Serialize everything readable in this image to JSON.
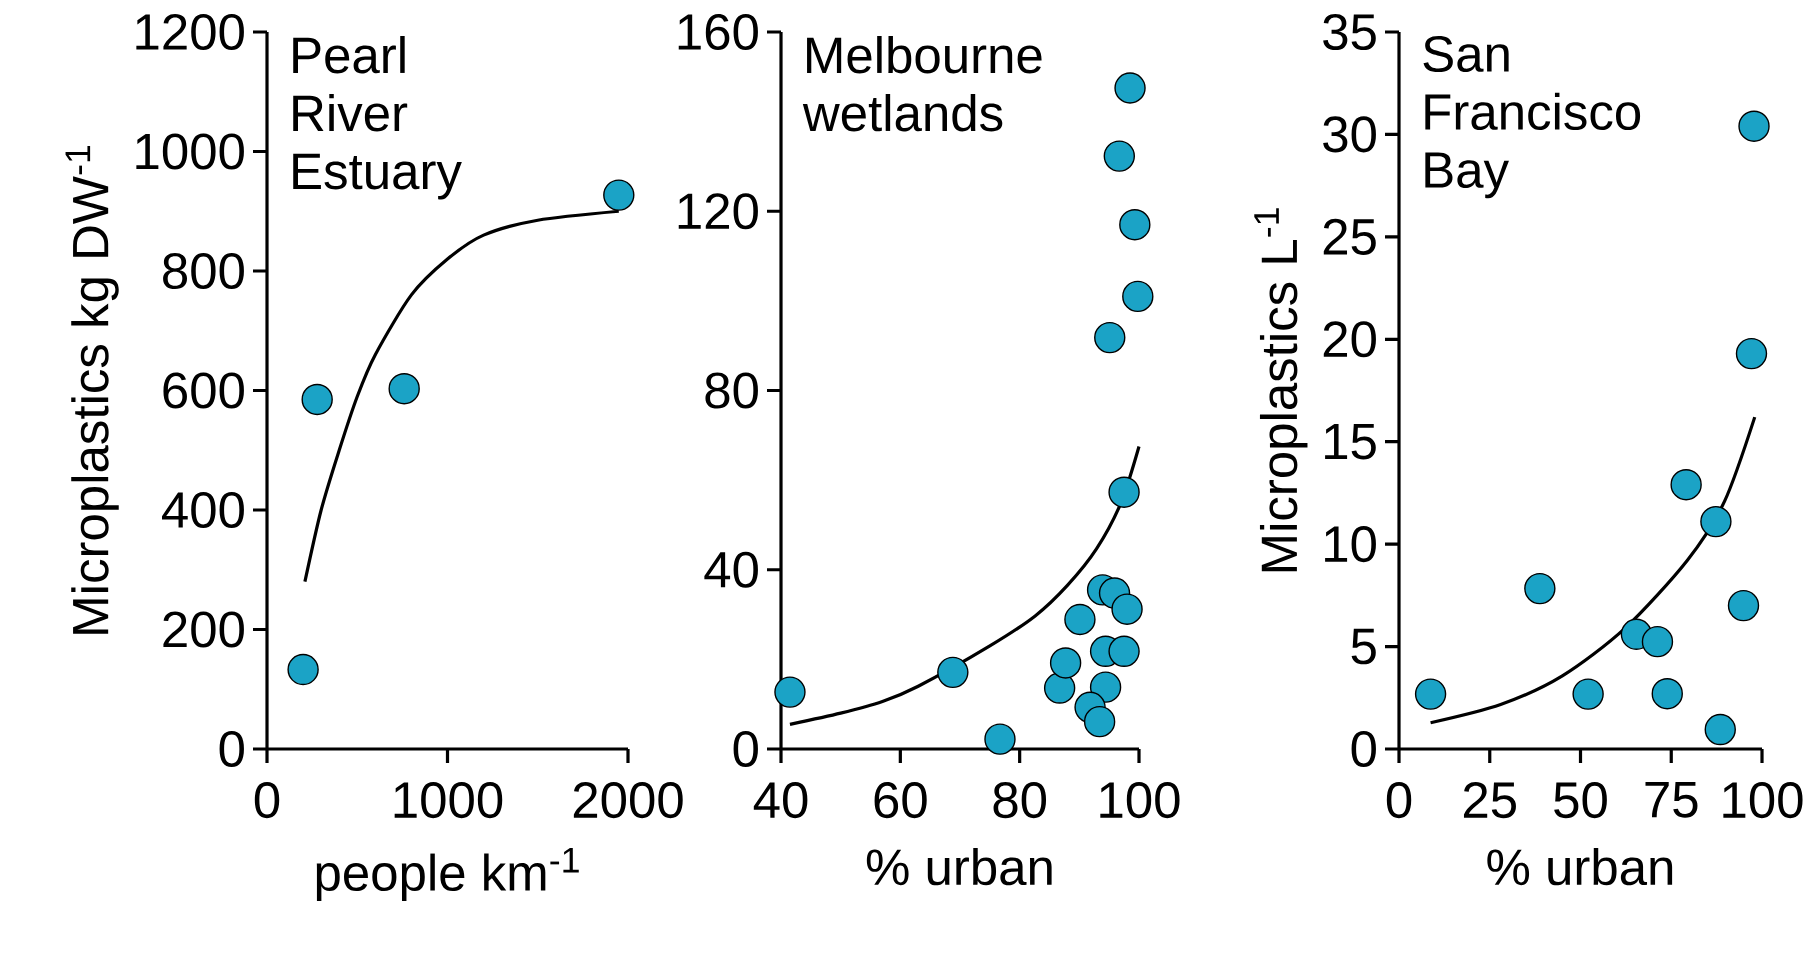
{
  "chart_data": [
    {
      "type": "scatter",
      "title": "Pearl River Estuary",
      "xlabel": "people km$^{-1}$",
      "ylabel": "Microplastics kg DW$^{-1}$",
      "xlim": [
        0,
        2000
      ],
      "ylim": [
        0,
        1200
      ],
      "xticks": [
        0,
        1000,
        2000
      ],
      "yticks": [
        0,
        200,
        400,
        600,
        800,
        1000,
        1200
      ],
      "series": [
        {
          "type": "line",
          "color": "#000000",
          "x": [
            210,
            300,
            400,
            500,
            600,
            800,
            1000,
            1200,
            1500,
            1949
          ],
          "values": [
            280,
            400,
            500,
            590,
            660,
            760,
            820,
            860,
            885,
            900
          ]
        },
        {
          "color": "#1ba3c6",
          "marker": "circle",
          "x": [
            200,
            278,
            760,
            1949
          ],
          "values": [
            133,
            585,
            603,
            927
          ]
        }
      ]
    },
    {
      "type": "scatter",
      "title": "Melbourne wetlands",
      "xlabel": "% urban",
      "xlim": [
        40,
        100
      ],
      "ylim": [
        0,
        160
      ],
      "xticks": [
        40,
        60,
        80,
        100
      ],
      "yticks": [
        0,
        40,
        80,
        120,
        160
      ],
      "series": [
        {
          "type": "line",
          "color": "#000000",
          "x": [
            41.5,
            50,
            57,
            63,
            75,
            82.6,
            88,
            92.9,
            97,
            100
          ],
          "values": [
            5.5,
            8,
            10.6,
            14,
            23,
            29.7,
            36.5,
            44.7,
            55,
            67.5
          ]
        },
        {
          "color": "#1ba3c6",
          "marker": "circle",
          "x": [
            41.5,
            68.8,
            76.7,
            86.7,
            87.7,
            90.1,
            93.9,
            95.9,
            98.0,
            94.4,
            97.5,
            94.4,
            91.8,
            93.4,
            97.5,
            95.1,
            99.8,
            99.3,
            96.7,
            98.5
          ],
          "values": [
            12.7,
            17.1,
            2.2,
            13.6,
            19.2,
            28.9,
            35.5,
            34.8,
            31.2,
            21.8,
            21.8,
            13.8,
            9.3,
            6.1,
            57.3,
            91.8,
            101,
            117,
            132.3,
            147.5
          ]
        }
      ]
    },
    {
      "type": "scatter",
      "title": "San Francisco Bay",
      "xlabel": "% urban",
      "ylabel": "Microplastics L$^{-1}$",
      "xlim": [
        0,
        100
      ],
      "ylim": [
        0,
        35
      ],
      "xticks": [
        0,
        25,
        50,
        75,
        100
      ],
      "yticks": [
        0,
        5,
        10,
        15,
        20,
        25,
        30,
        35
      ],
      "series": [
        {
          "type": "line",
          "color": "#000000",
          "x": [
            8.7,
            28,
            45,
            62.3,
            79.4,
            89.7,
            98
          ],
          "values": [
            1.28,
            2.17,
            3.57,
            5.9,
            9.2,
            12.1,
            16.2
          ]
        },
        {
          "color": "#1ba3c6",
          "marker": "circle",
          "x": [
            8.7,
            38.8,
            52.1,
            65.4,
            71.2,
            73.9,
            79.1,
            87.3,
            88.5,
            94.9,
            97.1,
            97.8
          ],
          "values": [
            2.68,
            7.83,
            2.68,
            5.6,
            5.24,
            2.7,
            12.9,
            11.1,
            0.95,
            7.0,
            19.3,
            30.4
          ]
        }
      ]
    }
  ]
}
